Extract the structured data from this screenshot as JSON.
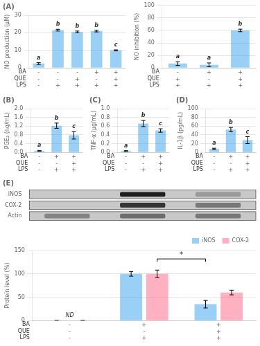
{
  "chart_data": [
    {
      "type": "bar",
      "title": "(A)",
      "ylabel": "NO production (μM)",
      "categories": [
        [
          "-",
          "-",
          "-"
        ],
        [
          "-",
          "-",
          "+"
        ],
        [
          "-",
          "+",
          "+"
        ],
        [
          "+",
          "-",
          "+"
        ],
        [
          "+",
          "+",
          "+"
        ]
      ],
      "values": [
        2.5,
        21.5,
        20.5,
        21.0,
        10.0
      ],
      "errors": [
        0.5,
        0.5,
        0.5,
        0.5,
        0.3
      ],
      "ylim": [
        0,
        30
      ],
      "yticks": [
        0,
        10,
        20,
        30
      ],
      "grid": "y",
      "annotations": [
        {
          "text": "a",
          "category": 0
        },
        {
          "text": "b",
          "category": 1
        },
        {
          "text": "b",
          "category": 2
        },
        {
          "text": "b",
          "category": 3
        },
        {
          "text": "c",
          "category": 4
        },
        {
          "text": "BA",
          "row": 0
        },
        {
          "text": "QUE",
          "row": 1
        },
        {
          "text": "LPS",
          "row": 2
        }
      ]
    },
    {
      "type": "bar",
      "ylabel": "NO inhibition (%)",
      "categories": [
        [
          "-",
          "+",
          "+"
        ],
        [
          "+",
          "-",
          "+"
        ],
        [
          "+",
          "+",
          "+"
        ]
      ],
      "values": [
        7.0,
        5.0,
        60.0
      ],
      "errors": [
        3.0,
        3.0,
        2.0
      ],
      "ylim": [
        0,
        100
      ],
      "yticks": [
        0,
        20,
        40,
        60,
        80,
        100
      ],
      "grid": "y",
      "annotations": [
        {
          "text": "a",
          "category": 0
        },
        {
          "text": "a",
          "category": 1
        },
        {
          "text": "b",
          "category": 2
        },
        {
          "text": "BA",
          "row": 0
        },
        {
          "text": "QUE",
          "row": 1
        },
        {
          "text": "LPS",
          "row": 2
        }
      ]
    },
    {
      "type": "bar",
      "title": "(B)",
      "ylabel": "PGE₂ (ng/mL)",
      "categories": [
        [
          "-",
          "-",
          "-"
        ],
        [
          "+",
          "-",
          "+"
        ],
        [
          "+",
          "+",
          "+"
        ]
      ],
      "values": [
        0.07,
        1.22,
        0.78
      ],
      "errors": [
        0.02,
        0.12,
        0.17
      ],
      "ylim": [
        0,
        2.0
      ],
      "yticks": [
        {
          "value": 0,
          "label": "0.0"
        },
        0.4,
        0.8,
        1.2,
        1.6,
        {
          "value": 2,
          "label": "2.0"
        }
      ],
      "grid": "y",
      "annotations": [
        {
          "text": "a",
          "category": 0
        },
        {
          "text": "b",
          "category": 1
        },
        {
          "text": "c",
          "category": 2
        },
        {
          "text": "BA",
          "row": 0
        },
        {
          "text": "QUE",
          "row": 1
        },
        {
          "text": "LPS",
          "row": 2
        }
      ]
    },
    {
      "type": "bar",
      "title": "(C)",
      "ylabel": "TNF-α (μg/mL)",
      "categories": [
        [
          "-",
          "-",
          "-"
        ],
        [
          "+",
          "-",
          "+"
        ],
        [
          "+",
          "+",
          "+"
        ]
      ],
      "values": [
        0.03,
        0.66,
        0.5
      ],
      "errors": [
        0.01,
        0.07,
        0.04
      ],
      "ylim": [
        0,
        1.0
      ],
      "yticks": [
        {
          "value": 0,
          "label": "0.0"
        },
        0.2,
        0.4,
        0.6,
        0.8,
        {
          "value": 1,
          "label": "1.0"
        }
      ],
      "grid": "y",
      "annotations": [
        {
          "text": "a",
          "category": 0
        },
        {
          "text": "b",
          "category": 1
        },
        {
          "text": "c",
          "category": 2
        },
        {
          "text": "BA",
          "row": 0
        },
        {
          "text": "QUE",
          "row": 1
        },
        {
          "text": "LPS",
          "row": 2
        }
      ]
    },
    {
      "type": "bar",
      "title": "(D)",
      "ylabel": "IL-1β (pg/mL)",
      "categories": [
        [
          "-",
          "-",
          "-"
        ],
        [
          "+",
          "-",
          "+"
        ],
        [
          "+",
          "+",
          "+"
        ]
      ],
      "values": [
        8.0,
        52.0,
        28.0
      ],
      "errors": [
        1.5,
        5.0,
        8.0
      ],
      "ylim": [
        0,
        100
      ],
      "yticks": [
        0,
        20,
        40,
        60,
        80,
        100
      ],
      "grid": "y",
      "annotations": [
        {
          "text": "a",
          "category": 0
        },
        {
          "text": "b",
          "category": 1
        },
        {
          "text": "c",
          "category": 2
        },
        {
          "text": "BA",
          "row": 0
        },
        {
          "text": "QUE",
          "row": 1
        },
        {
          "text": "LPS",
          "row": 2
        }
      ]
    },
    {
      "type": "heatmap",
      "title": "(E)",
      "categories": [
        null,
        null,
        null
      ],
      "series": [
        {
          "name": "iNOS",
          "values": [
            0,
            1,
            0.45
          ]
        },
        {
          "name": "COX-2",
          "values": [
            0,
            0.9,
            0.6
          ]
        },
        {
          "name": "Actin",
          "values": [
            0.55,
            0.65,
            0.6
          ]
        }
      ],
      "tick_labels": "y"
    },
    {
      "type": "bar",
      "ylabel": "Protein level (%)",
      "categories": [
        [
          "-",
          "-",
          "-"
        ],
        [
          "+",
          "-",
          "+"
        ],
        [
          "+",
          "+",
          "+"
        ]
      ],
      "series": [
        {
          "name": "iNOS",
          "values": [
            0,
            100,
            35
          ],
          "errors": [
            0,
            5,
            8
          ]
        },
        {
          "name": "COX-2",
          "values": [
            0,
            100,
            60
          ],
          "errors": [
            0,
            8,
            5
          ]
        }
      ],
      "ylim": [
        0,
        150
      ],
      "yticks": [
        0,
        50,
        100,
        150
      ],
      "grid": "y",
      "legend": "upper right",
      "annotations": [
        {
          "text": "ND",
          "category": 0
        },
        {
          "text": "*",
          "y": 132,
          "categories": [
            1,
            2
          ]
        },
        {
          "text": "BA",
          "row": 0
        },
        {
          "text": "QUE",
          "row": 1
        },
        {
          "text": "LPS",
          "row": 2
        }
      ]
    }
  ]
}
